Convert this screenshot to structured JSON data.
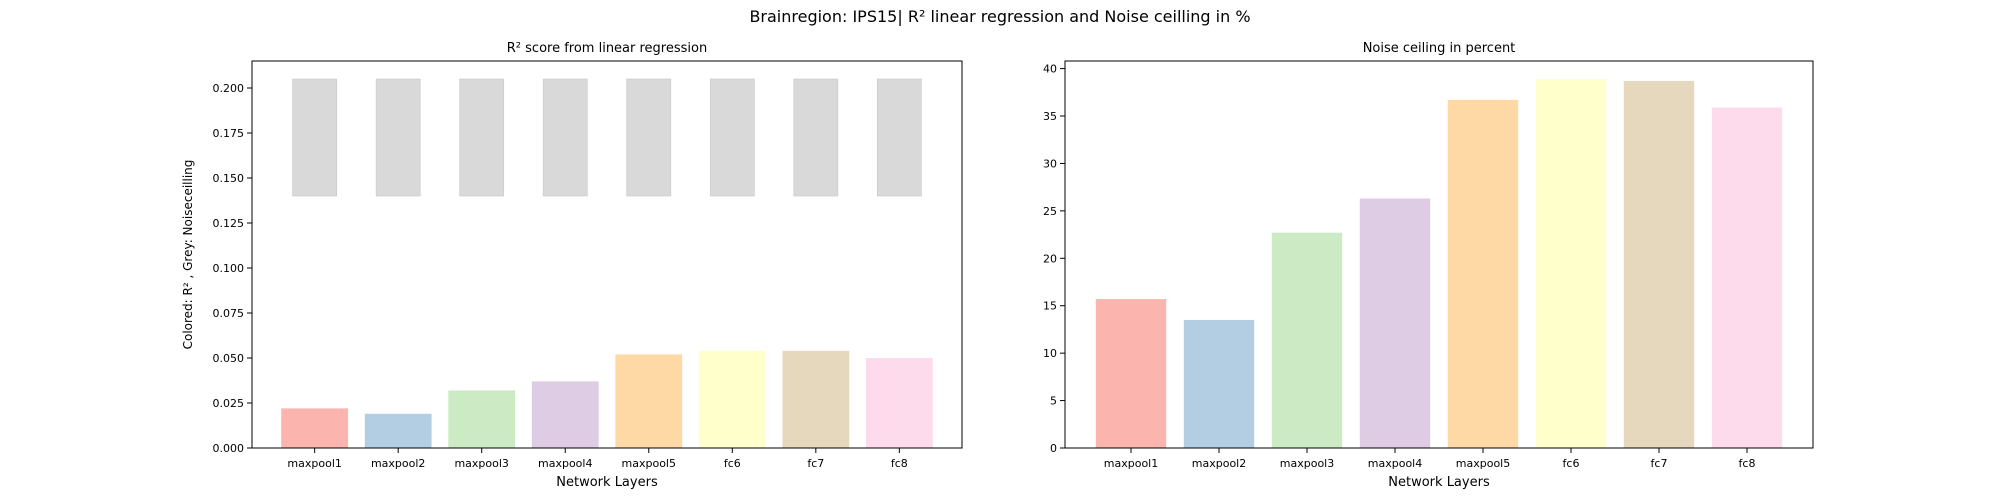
{
  "figure": {
    "suptitle": "Brainregion: IPS15| R² linear regression and Noise ceilling in %"
  },
  "chart_data": [
    {
      "type": "bar",
      "title": "R² score from linear regression",
      "xlabel": "Network Layers",
      "ylabel": "Colored: R² , Grey: Noiseceilling",
      "categories": [
        "maxpool1",
        "maxpool2",
        "maxpool3",
        "maxpool4",
        "maxpool5",
        "fc6",
        "fc7",
        "fc8"
      ],
      "series": [
        {
          "values": [
            0.022,
            0.019,
            0.032,
            0.037,
            0.052,
            0.054,
            0.054,
            0.05
          ],
          "colors": [
            "#fbb4ae",
            "#b3cde3",
            "#ccebc5",
            "#decbe4",
            "#fed9a6",
            "#ffffcc",
            "#e5d8bd",
            "#fddaec"
          ]
        },
        {
          "bottoms": [
            0.14,
            0.14,
            0.14,
            0.14,
            0.14,
            0.14,
            0.14,
            0.14
          ],
          "tops": [
            0.205,
            0.205,
            0.205,
            0.205,
            0.205,
            0.205,
            0.205,
            0.205
          ],
          "color": "#d9d9d9"
        }
      ],
      "ylim": [
        0,
        0.215
      ],
      "yticks": [
        0.0,
        0.025,
        0.05,
        0.075,
        0.1,
        0.125,
        0.15,
        0.175,
        0.2
      ],
      "ytick_labels": [
        "0.000",
        "0.025",
        "0.050",
        "0.075",
        "0.100",
        "0.125",
        "0.150",
        "0.175",
        "0.200"
      ],
      "grid": false,
      "legend": "none"
    },
    {
      "type": "bar",
      "title": "Noise ceiling in percent",
      "xlabel": "Network Layers",
      "ylabel": "",
      "categories": [
        "maxpool1",
        "maxpool2",
        "maxpool3",
        "maxpool4",
        "maxpool5",
        "fc6",
        "fc7",
        "fc8"
      ],
      "series": [
        {
          "values": [
            15.7,
            13.5,
            22.7,
            26.3,
            36.7,
            38.9,
            38.7,
            35.9
          ],
          "colors": [
            "#fbb4ae",
            "#b3cde3",
            "#ccebc5",
            "#decbe4",
            "#fed9a6",
            "#ffffcc",
            "#e5d8bd",
            "#fddaec"
          ]
        }
      ],
      "ylim": [
        0,
        40.8
      ],
      "yticks": [
        0,
        5,
        10,
        15,
        20,
        25,
        30,
        35,
        40
      ],
      "ytick_labels": [
        "0",
        "5",
        "10",
        "15",
        "20",
        "25",
        "30",
        "35",
        "40"
      ],
      "grid": false,
      "legend": "none"
    }
  ]
}
